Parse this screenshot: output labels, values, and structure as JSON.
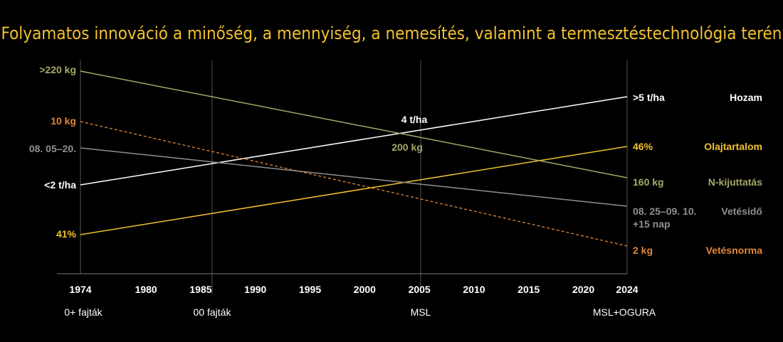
{
  "title": "Folyamatos innováció a minőség, a mennyiség, a nemesítés, valamint a termesztéstechnológia terén",
  "chart_data": {
    "type": "line",
    "title": "Folyamatos innováció a minőség, a mennyiség, a nemesítés, valamint a termesztéstechnológia terén",
    "x_ticks": [
      "1974",
      "1980",
      "1985",
      "1990",
      "1995",
      "2000",
      "2005",
      "2010",
      "2015",
      "2020",
      "2024"
    ],
    "x_range": [
      1974,
      2024
    ],
    "eras": [
      {
        "label": "0+ fajták",
        "x": 1974
      },
      {
        "label": "00 fajták",
        "x": 1987.5
      },
      {
        "label": "MSL",
        "x": 2005
      },
      {
        "label": "MSL+OGURA",
        "x": 2024
      }
    ],
    "series": [
      {
        "name": "Hozam",
        "color": "#ffffff",
        "dashed": false,
        "x": [
          1974,
          2024
        ],
        "start_label": "<2 t/ha",
        "end_label": ">5 t/ha",
        "mid_label": "4 t/ha",
        "mid_x": 2005
      },
      {
        "name": "Olajtartalom",
        "color": "#f2c12e",
        "dashed": false,
        "x": [
          1974,
          2024
        ],
        "start_label": "41%",
        "end_label": "46%"
      },
      {
        "name": "N-kijuttatás",
        "color": "#a6a86a",
        "dashed": false,
        "x": [
          1974,
          2024
        ],
        "start_label": ">220  kg",
        "end_label": "160 kg",
        "mid_label": "200 kg",
        "mid_x": 2005
      },
      {
        "name": "Vetésidő",
        "color": "#8f8f8f",
        "dashed": false,
        "x": [
          1974,
          2024
        ],
        "start_label": "08. 05–20.",
        "end_label": "08. 25–09. 10.",
        "end_label_2": "+15 nap"
      },
      {
        "name": "Vetésnorma",
        "color": "#e0873a",
        "dashed": true,
        "x": [
          1974,
          2024
        ],
        "start_label": "10 kg",
        "end_label": "2 kg"
      }
    ]
  },
  "colors": {
    "title": "#f2c12e",
    "grid": "#555555",
    "axis": "#777777"
  }
}
